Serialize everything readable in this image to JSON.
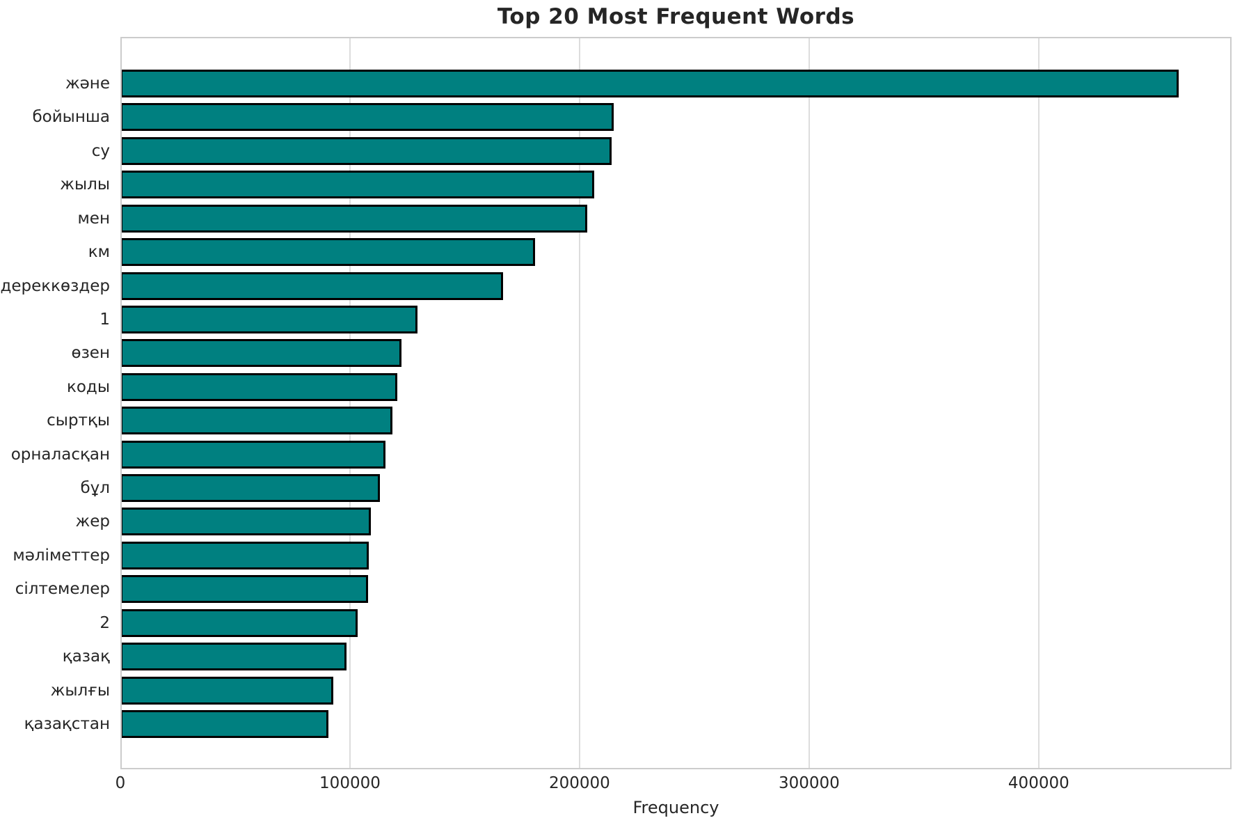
{
  "chart_data": {
    "type": "bar",
    "orientation": "horizontal",
    "title": "Top 20 Most Frequent Words",
    "xlabel": "Frequency",
    "ylabel": "",
    "categories": [
      "және",
      "бойынша",
      "су",
      "жылы",
      "мен",
      "км",
      "дереккөздер",
      "1",
      "өзен",
      "коды",
      "сыртқы",
      "орналасқан",
      "бұл",
      "жер",
      "мәліметтер",
      "сілтемелер",
      "2",
      "қазақ",
      "жылғы",
      "қазақстан"
    ],
    "values": [
      461000,
      215000,
      214000,
      206500,
      203500,
      180500,
      166700,
      129400,
      122400,
      120600,
      118400,
      115400,
      113000,
      109200,
      108200,
      107800,
      103400,
      98400,
      92700,
      90600
    ],
    "xlim": [
      0,
      484000
    ],
    "xticks": [
      0,
      100000,
      200000,
      300000,
      400000
    ],
    "xtick_labels": [
      "0",
      "100000",
      "200000",
      "300000",
      "400000"
    ],
    "grid": "vertical-gridlines-on",
    "legend": "none",
    "colors": {
      "bar_fill": "#008080",
      "bar_edge": "#000000",
      "gridline": "#dddddd",
      "spine": "#cccccc",
      "text": "#262626",
      "background": "#ffffff"
    }
  }
}
